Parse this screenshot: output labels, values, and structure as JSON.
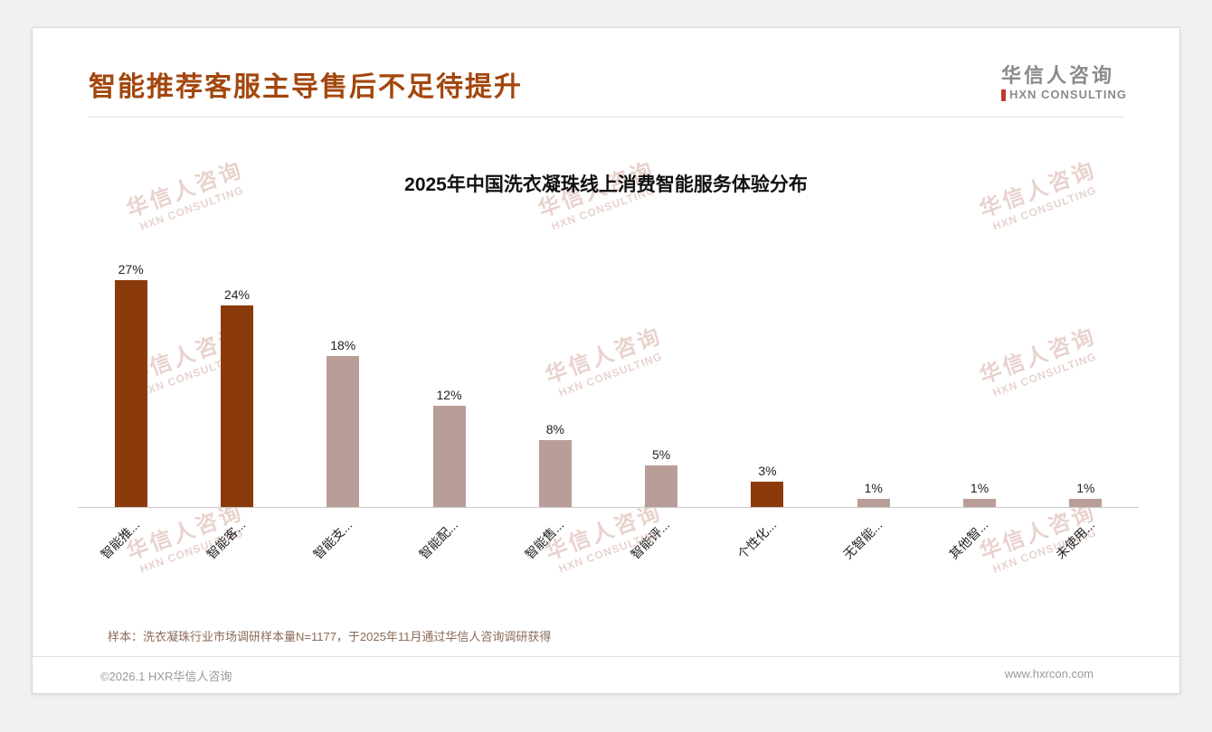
{
  "header": {
    "title": "智能推荐客服主导售后不足待提升",
    "logo": {
      "name_cn": "华信人咨询",
      "name_en": "HXN CONSULTING"
    }
  },
  "watermark": {
    "line1": "华信人咨询",
    "line2": "HXN CONSULTING"
  },
  "chart_data": {
    "type": "bar",
    "title": "2025年中国洗衣凝珠线上消费智能服务体验分布",
    "categories": [
      "智能推...",
      "智能客...",
      "智能支...",
      "智能配...",
      "智能售...",
      "智能评...",
      "个性化...",
      "无智能...",
      "其他智...",
      "未使用..."
    ],
    "values": [
      27,
      24,
      18,
      12,
      8,
      5,
      3,
      1,
      1,
      1
    ],
    "value_labels": [
      "27%",
      "24%",
      "18%",
      "12%",
      "8%",
      "5%",
      "3%",
      "1%",
      "1%",
      "1%"
    ],
    "bar_colors": [
      "#8b3a0b",
      "#8b3a0b",
      "#b99d97",
      "#b99d97",
      "#b99d97",
      "#b99d97",
      "#8b3a0b",
      "#b99d97",
      "#b99d97",
      "#b99d97"
    ],
    "xlabel": "",
    "ylabel": "",
    "ylim": [
      0,
      30
    ],
    "grid": false,
    "legend": false,
    "x_label_rotation_deg": -45
  },
  "colors": {
    "accent": "#a3470e",
    "bar_dark": "#8b3a0b",
    "bar_light": "#b99d97",
    "watermark": "#c9968a"
  },
  "footer": {
    "note": "样本：洗衣凝珠行业市场调研样本量N=1177，于2025年11月通过华信人咨询调研获得",
    "copyright": "©2026.1 HXR华信人咨询",
    "website": "www.hxrcon.com"
  }
}
